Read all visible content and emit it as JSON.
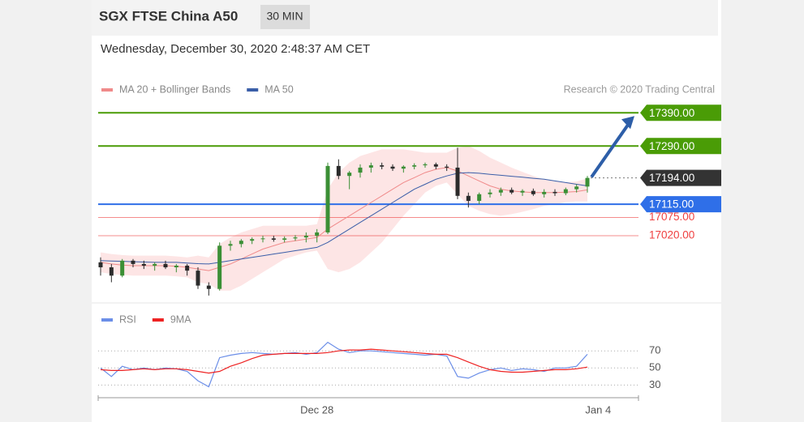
{
  "chart_data": [
    {
      "type": "candlestick",
      "title": "SGX FTSE China A50",
      "timeframe": "30 MIN",
      "subtitle": "Wednesday, December 30, 2020 2:48:37 AM CET",
      "source": "Research © 2020 Trading Central",
      "ylim": [
        16830,
        17415
      ],
      "candles": {
        "up_color": "#3b8f35",
        "down_color": "#2b2b2b",
        "values": [
          [
            16940,
            16955,
            16900,
            16925
          ],
          [
            16925,
            16935,
            16880,
            16900
          ],
          [
            16900,
            16950,
            16895,
            16945
          ],
          [
            16945,
            16950,
            16925,
            16935
          ],
          [
            16935,
            16945,
            16920,
            16930
          ],
          [
            16930,
            16940,
            16915,
            16935
          ],
          [
            16935,
            16945,
            16920,
            16925
          ],
          [
            16925,
            16935,
            16910,
            16930
          ],
          [
            16930,
            16935,
            16900,
            16915
          ],
          [
            16915,
            16925,
            16860,
            16870
          ],
          [
            16870,
            16880,
            16840,
            16860
          ],
          [
            16860,
            17000,
            16855,
            16990
          ],
          [
            16990,
            17005,
            16975,
            16995
          ],
          [
            16995,
            17010,
            16985,
            17005
          ],
          [
            17005,
            17015,
            16995,
            17010
          ],
          [
            17010,
            17020,
            17000,
            17012
          ],
          [
            17012,
            17020,
            17002,
            17008
          ],
          [
            17008,
            17018,
            17000,
            17012
          ],
          [
            17012,
            17022,
            17005,
            17015
          ],
          [
            17015,
            17030,
            17000,
            17020
          ],
          [
            17020,
            17040,
            17000,
            17030
          ],
          [
            17030,
            17240,
            17025,
            17230
          ],
          [
            17230,
            17250,
            17190,
            17200
          ],
          [
            17200,
            17215,
            17160,
            17210
          ],
          [
            17210,
            17235,
            17195,
            17225
          ],
          [
            17225,
            17240,
            17210,
            17232
          ],
          [
            17232,
            17240,
            17220,
            17228
          ],
          [
            17228,
            17235,
            17215,
            17222
          ],
          [
            17222,
            17232,
            17210,
            17228
          ],
          [
            17228,
            17238,
            17220,
            17232
          ],
          [
            17232,
            17240,
            17225,
            17235
          ],
          [
            17235,
            17240,
            17220,
            17228
          ],
          [
            17228,
            17235,
            17215,
            17225
          ],
          [
            17225,
            17285,
            17130,
            17140
          ],
          [
            17140,
            17150,
            17105,
            17125
          ],
          [
            17125,
            17150,
            17115,
            17145
          ],
          [
            17145,
            17160,
            17135,
            17150
          ],
          [
            17150,
            17165,
            17140,
            17158
          ],
          [
            17158,
            17165,
            17145,
            17150
          ],
          [
            17150,
            17160,
            17140,
            17155
          ],
          [
            17155,
            17162,
            17140,
            17145
          ],
          [
            17145,
            17160,
            17135,
            17152
          ],
          [
            17152,
            17160,
            17140,
            17148
          ],
          [
            17148,
            17165,
            17142,
            17160
          ],
          [
            17160,
            17175,
            17150,
            17168
          ],
          [
            17168,
            17200,
            17150,
            17194
          ],
          null
        ]
      },
      "band": {
        "color": "#fbd3d3",
        "upper": [
          16970,
          16965,
          16962,
          16960,
          16960,
          16960,
          16960,
          16958,
          16955,
          16960,
          16955,
          16995,
          17015,
          17030,
          17040,
          17050,
          17050,
          17050,
          17050,
          17050,
          17055,
          17160,
          17210,
          17240,
          17260,
          17270,
          17280,
          17280,
          17280,
          17275,
          17270,
          17270,
          17270,
          17285,
          17290,
          17275,
          17255,
          17240,
          17225,
          17212,
          17200,
          17190,
          17185,
          17181,
          17183,
          17193,
          null
        ],
        "lower": [
          16910,
          16905,
          16902,
          16900,
          16900,
          16900,
          16900,
          16898,
          16895,
          16880,
          16875,
          16855,
          16855,
          16870,
          16890,
          16910,
          16930,
          16950,
          16960,
          16970,
          16975,
          16920,
          16910,
          16920,
          16940,
          16970,
          17000,
          17040,
          17080,
          17115,
          17150,
          17170,
          17180,
          17145,
          17110,
          17095,
          17085,
          17080,
          17085,
          17092,
          17100,
          17110,
          17115,
          17121,
          17123,
          17123,
          null
        ]
      },
      "series": [
        {
          "name": "MA 20 + Bollinger Bands",
          "color": "#f08a8a",
          "values": [
            16940,
            16935,
            16932,
            16930,
            16930,
            16930,
            16930,
            16928,
            16925,
            16920,
            16915,
            16925,
            16935,
            16950,
            16965,
            16980,
            16990,
            17000,
            17005,
            17010,
            17015,
            17040,
            17060,
            17080,
            17100,
            17120,
            17140,
            17160,
            17180,
            17195,
            17210,
            17220,
            17225,
            17215,
            17200,
            17185,
            17170,
            17160,
            17155,
            17152,
            17150,
            17150,
            17150,
            17151,
            17153,
            17158,
            null
          ]
        },
        {
          "name": "MA 50",
          "color": "#3a5ea8",
          "values": [
            16945,
            16944,
            16943,
            16942,
            16941,
            16940,
            16940,
            16940,
            16938,
            16936,
            16935,
            16940,
            16945,
            16950,
            16955,
            16960,
            16965,
            16970,
            16975,
            16980,
            16985,
            17000,
            17020,
            17040,
            17060,
            17080,
            17100,
            17120,
            17140,
            17160,
            17175,
            17190,
            17200,
            17208,
            17210,
            17208,
            17205,
            17202,
            17199,
            17196,
            17193,
            17190,
            17185,
            17180,
            17175,
            17170,
            null
          ]
        }
      ],
      "levels": [
        {
          "value": 17390,
          "label": "17390.00",
          "color": "#4a9c06",
          "style": "tag"
        },
        {
          "value": 17290,
          "label": "17290.00",
          "color": "#4a9c06",
          "style": "tag"
        },
        {
          "value": 17115,
          "label": "17115.00",
          "color": "#2f6fe8",
          "style": "tag"
        },
        {
          "value": 17075,
          "label": "17075.00",
          "color": "#ef4040",
          "style": "text"
        },
        {
          "value": 17020,
          "label": "17020.00",
          "color": "#ef4040",
          "style": "text"
        }
      ],
      "last": {
        "value": 17194,
        "label": "17194.00",
        "color": "#333333"
      }
    },
    {
      "type": "line",
      "categories": [
        null,
        null,
        null,
        null,
        null,
        null,
        null,
        null,
        null,
        null,
        null,
        null,
        null,
        null,
        null,
        null,
        null,
        null,
        null,
        null,
        "Dec 28",
        null,
        null,
        null,
        null,
        null,
        null,
        null,
        null,
        null,
        null,
        null,
        null,
        null,
        null,
        null,
        null,
        null,
        null,
        null,
        null,
        null,
        null,
        null,
        null,
        null,
        "Jan 4"
      ],
      "ylim": [
        18,
        92
      ],
      "yticks": [
        30,
        50,
        70
      ],
      "series": [
        {
          "name": "RSI",
          "color": "#6b8ee8",
          "values": [
            50,
            40,
            52,
            48,
            50,
            48,
            50,
            49,
            46,
            35,
            28,
            62,
            65,
            67,
            68,
            67,
            66,
            67,
            68,
            66,
            68,
            80,
            72,
            68,
            70,
            70,
            69,
            68,
            67,
            66,
            65,
            66,
            64,
            40,
            38,
            44,
            48,
            50,
            47,
            49,
            48,
            46,
            50,
            50,
            52,
            66,
            null
          ]
        },
        {
          "name": "9MA",
          "color": "#ee2222",
          "values": [
            48,
            47,
            47,
            48,
            49,
            48,
            49,
            49,
            48,
            46,
            44,
            46,
            52,
            56,
            61,
            65,
            66,
            67,
            67,
            67,
            67,
            68,
            70,
            71,
            71,
            72,
            71,
            70,
            69,
            68,
            67,
            66,
            66,
            62,
            57,
            52,
            48,
            46,
            45,
            45,
            46,
            47,
            48,
            48,
            49,
            51,
            null
          ]
        }
      ]
    }
  ]
}
